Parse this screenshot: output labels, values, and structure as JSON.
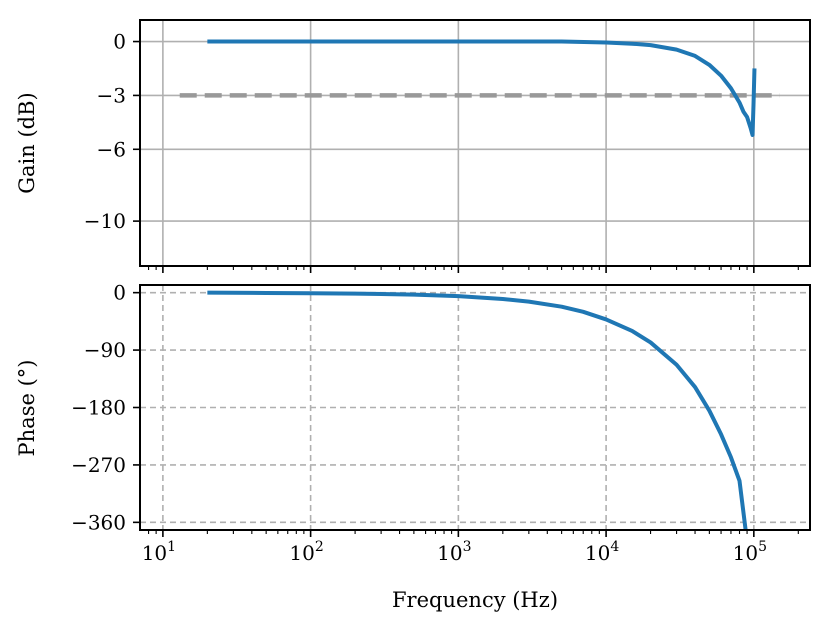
{
  "chart_data": [
    {
      "type": "line",
      "panel": "gain",
      "xscale": "log",
      "xlim": [
        7,
        240000
      ],
      "ylim": [
        -12.5,
        1.2
      ],
      "ylabel": "Gain (dB)",
      "yticks": [
        0,
        -3,
        -6,
        -10
      ],
      "ytick_labels": [
        "0",
        "−3",
        "−6",
        "−10"
      ],
      "grid": "solid",
      "reference_line": {
        "y": -3,
        "x_range": [
          13,
          150000
        ],
        "style": "dashed",
        "color": "#999999"
      },
      "series": [
        {
          "color": "#1f77b4",
          "x": [
            20,
            50,
            100,
            200,
            500,
            1000,
            2000,
            5000,
            10000,
            15000,
            20000,
            30000,
            40000,
            50000,
            60000,
            70000,
            80000,
            85000,
            90000,
            95000,
            98000,
            99500,
            101000
          ],
          "y": [
            0,
            0,
            0,
            0,
            0,
            0,
            0,
            0,
            -0.05,
            -0.12,
            -0.2,
            -0.45,
            -0.8,
            -1.3,
            -1.9,
            -2.6,
            -3.4,
            -3.9,
            -4.2,
            -4.8,
            -5.2,
            -3.5,
            -1.5
          ]
        }
      ]
    },
    {
      "type": "line",
      "panel": "phase",
      "xscale": "log",
      "xlim": [
        7,
        240000
      ],
      "ylim": [
        -372,
        12
      ],
      "xlabel": "Frequency (Hz)",
      "ylabel": "Phase (°)",
      "yticks": [
        0,
        -90,
        -180,
        -270,
        -360
      ],
      "ytick_labels": [
        "0",
        "−90",
        "−180",
        "−270",
        "−360"
      ],
      "xticks": [
        10,
        100,
        1000,
        10000,
        100000
      ],
      "xtick_labels": [
        {
          "base": "10",
          "exp": "1"
        },
        {
          "base": "10",
          "exp": "2"
        },
        {
          "base": "10",
          "exp": "3"
        },
        {
          "base": "10",
          "exp": "4"
        },
        {
          "base": "10",
          "exp": "5"
        }
      ],
      "grid": "dashed",
      "series": [
        {
          "color": "#1f77b4",
          "x": [
            20,
            50,
            100,
            200,
            500,
            1000,
            2000,
            3000,
            5000,
            7000,
            10000,
            15000,
            20000,
            30000,
            40000,
            50000,
            60000,
            70000,
            80000,
            88000
          ],
          "y": [
            0,
            -0.5,
            -1,
            -1.5,
            -3,
            -5.5,
            -10,
            -14,
            -22,
            -30,
            -42,
            -60,
            -78,
            -113,
            -148,
            -185,
            -222,
            -258,
            -295,
            -372
          ]
        }
      ]
    }
  ]
}
